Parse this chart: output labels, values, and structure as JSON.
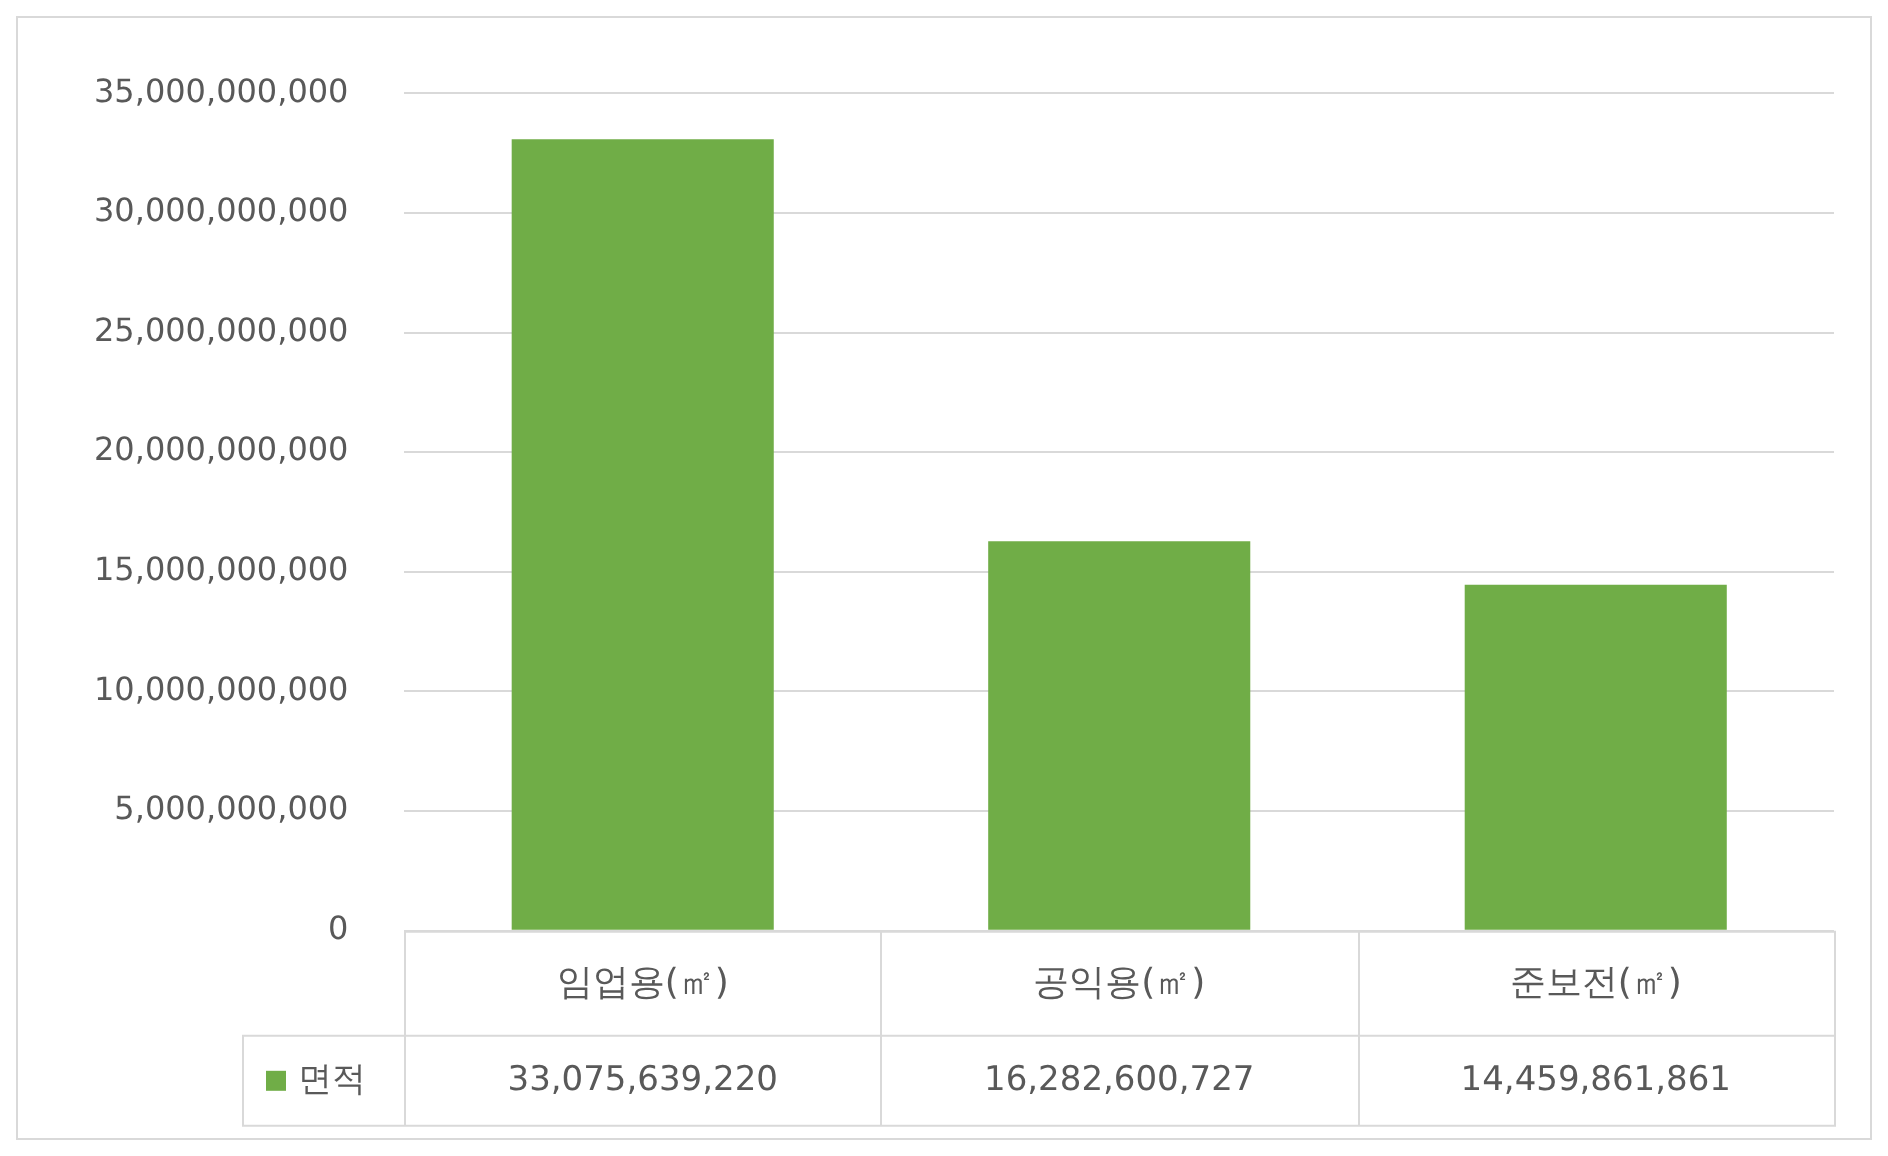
{
  "chart_data": {
    "type": "bar",
    "categories": [
      "임업용(㎡)",
      "공익용(㎡)",
      "준보전(㎡)"
    ],
    "series": [
      {
        "name": "면적",
        "color": "#70ad47",
        "values": [
          33075639220,
          16282600727,
          14459861861
        ],
        "value_labels": [
          "33,075,639,220",
          "16,282,600,727",
          "14,459,861,861"
        ]
      }
    ],
    "ylim": [
      0,
      35000000000
    ],
    "yticks": [
      0,
      {
        "value": 5000000000,
        "label": "5,000,000,000"
      },
      {
        "value": 10000000000,
        "label": "10,000,000,000"
      },
      {
        "value": 15000000000,
        "label": "15,000,000,000"
      },
      {
        "value": 20000000000,
        "label": "20,000,000,000"
      },
      {
        "value": 25000000000,
        "label": "25,000,000,000"
      },
      {
        "value": 30000000000,
        "label": "30,000,000,000"
      },
      {
        "value": 35000000000,
        "label": "35,000,000,000"
      }
    ],
    "grid": "y",
    "legend": "bottom"
  }
}
